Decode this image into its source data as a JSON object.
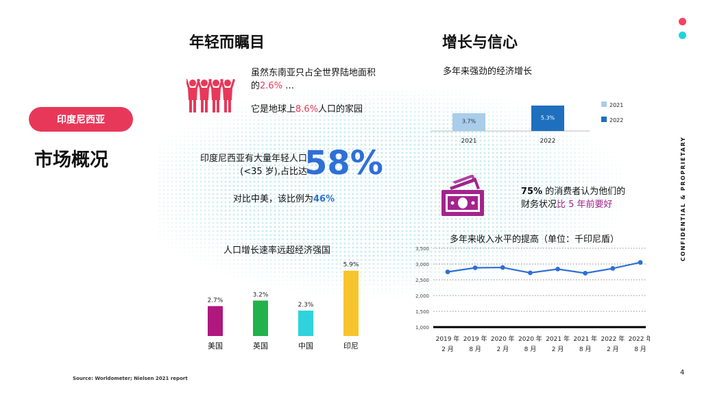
{
  "colors": {
    "accent_pink": "#e8385a",
    "accent_blue": "#2f6fd6",
    "accent_cyan": "#20d4de",
    "purple": "#a3248d",
    "map_dots": "#c7ecec"
  },
  "heading_left": "年轻而瞩目",
  "heading_right": "增长与信心",
  "country_pill": "印度尼西亚",
  "slide_title": "市场概况",
  "fact1": {
    "pre": "虽然东南亚只占全世界陆地面积的",
    "value": "2.6%",
    "post": " …"
  },
  "fact2": {
    "pre": "它是地球上",
    "value": "8.6%",
    "post": "人口的家园"
  },
  "youth": {
    "text": "印度尼西亚有大量年轻人口(<35 岁),占比达",
    "big": "58%",
    "compare_pre": "对比中美，该比例为",
    "compare_value": "46%"
  },
  "confidence": {
    "value": "75%",
    "text_a": "的消费者认为他们的",
    "text_b": "财务状况",
    "emph": "比 5 年前要好"
  },
  "vertical_label": "CONFIDENTIAL & PROPRIETARY",
  "source": "Source:  Worldometer; Nielsen 2021 report",
  "page_number": "4",
  "icons": {
    "people": "people-icon",
    "money": "money-icon"
  },
  "chart_data": [
    {
      "type": "bar",
      "title": "人口增长速率远超经济强国",
      "categories": [
        "美国",
        "英国",
        "中国",
        "印尼"
      ],
      "values": [
        2.7,
        3.2,
        2.3,
        5.9
      ],
      "data_labels": [
        "2.7%",
        "3.2%",
        "2.3%",
        "5.9%"
      ],
      "colors": [
        "#b0177f",
        "#22b14c",
        "#2ed3dd",
        "#f8c42e"
      ],
      "ylim": [
        0,
        6.5
      ]
    },
    {
      "type": "bar",
      "title": "多年来强劲的经济增长",
      "categories": [
        "2021",
        "2022"
      ],
      "series": [
        {
          "name": "2021",
          "values": [
            3.7,
            null
          ]
        },
        {
          "name": "2022",
          "values": [
            null,
            5.3
          ]
        }
      ],
      "data_labels": [
        "3.7%",
        "5.3%"
      ],
      "colors": [
        "#a9cdea",
        "#1f6fbf"
      ],
      "legend": "right",
      "ylim": [
        0,
        6
      ]
    },
    {
      "type": "line",
      "title": "多年来收入水平的提高（单位：千印尼盾）",
      "categories": [
        "2019 年2 月",
        "2019 年8 月",
        "2020 年2 月",
        "2020 年8 月",
        "2021 年2 月",
        "2021 年8 月",
        "2022 年2 月",
        "2022 年8 月"
      ],
      "cat_line1": [
        "2019 年",
        "2019 年",
        "2020 年",
        "2020 年",
        "2021 年",
        "2021 年",
        "2022 年",
        "2022 年"
      ],
      "cat_line2": [
        "2 月",
        "8 月",
        "2 月",
        "8 月",
        "2 月",
        "8 月",
        "2 月",
        "8 月"
      ],
      "values": [
        2750,
        2880,
        2890,
        2720,
        2840,
        2710,
        2860,
        3050
      ],
      "yticks": [
        "3,500",
        "3,000",
        "2,500",
        "2,000",
        "1,500",
        "1,000"
      ],
      "ytick_values": [
        3500,
        3000,
        2500,
        2000,
        1500,
        1000
      ],
      "ylim": [
        1000,
        3500
      ],
      "grid": true,
      "line_color": "#2f6fd6"
    }
  ]
}
